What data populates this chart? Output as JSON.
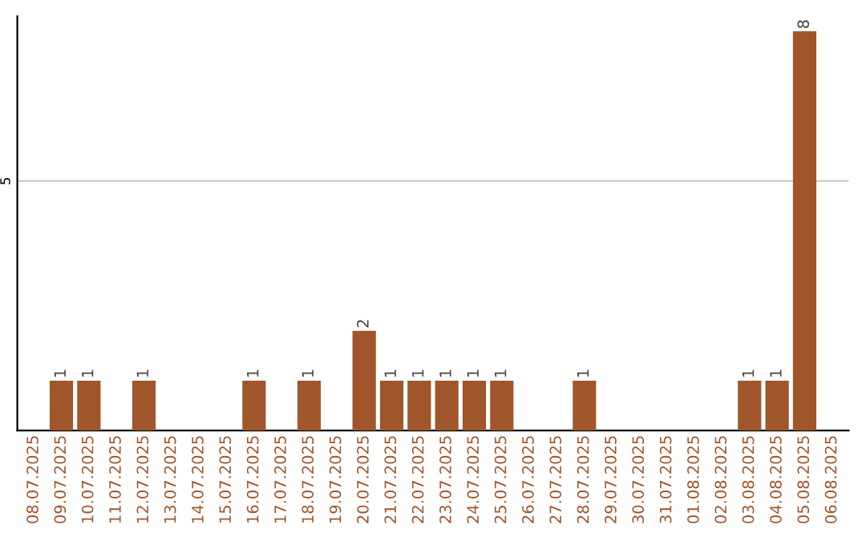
{
  "chart_data": {
    "type": "bar",
    "categories": [
      "08.07.2025",
      "09.07.2025",
      "10.07.2025",
      "11.07.2025",
      "12.07.2025",
      "13.07.2025",
      "14.07.2025",
      "15.07.2025",
      "16.07.2025",
      "17.07.2025",
      "18.07.2025",
      "19.07.2025",
      "20.07.2025",
      "21.07.2025",
      "22.07.2025",
      "23.07.2025",
      "24.07.2025",
      "25.07.2025",
      "26.07.2025",
      "27.07.2025",
      "28.07.2025",
      "29.07.2025",
      "30.07.2025",
      "31.07.2025",
      "01.08.2025",
      "02.08.2025",
      "03.08.2025",
      "04.08.2025",
      "05.08.2025",
      "06.08.2025"
    ],
    "values": [
      0,
      1,
      1,
      0,
      1,
      0,
      0,
      0,
      1,
      0,
      1,
      0,
      2,
      1,
      1,
      1,
      1,
      1,
      0,
      0,
      1,
      0,
      0,
      0,
      0,
      0,
      1,
      1,
      8,
      0
    ],
    "value_labels": [
      null,
      "1",
      "1",
      null,
      "1",
      null,
      null,
      null,
      "1",
      null,
      "1",
      null,
      "2",
      "1",
      "1",
      "1",
      "1",
      "1",
      null,
      null,
      "1",
      null,
      null,
      null,
      null,
      null,
      "1",
      "1",
      "8",
      null
    ],
    "color": "#a0562a",
    "ylim": [
      0,
      8.3
    ],
    "yticks": [
      5
    ],
    "grid": "y"
  }
}
